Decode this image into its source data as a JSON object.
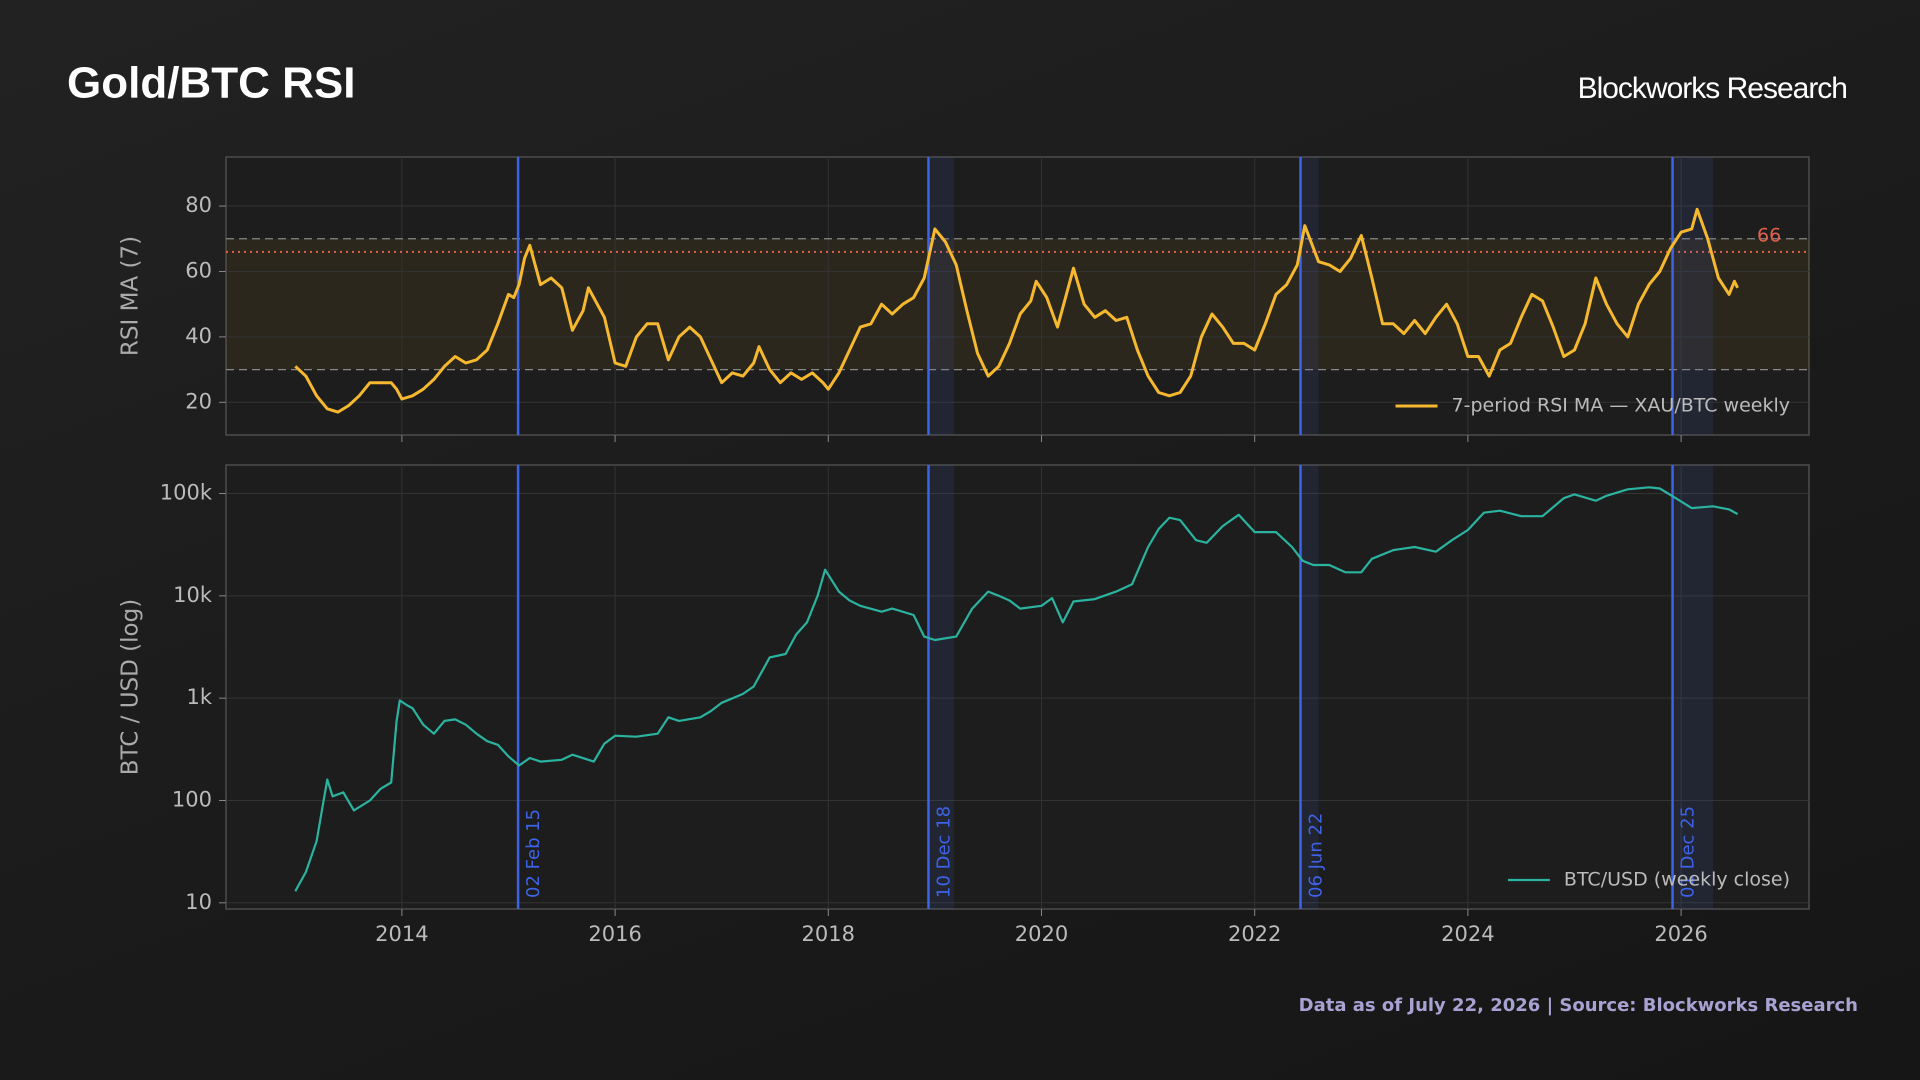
{
  "title": "Gold/BTC RSI",
  "brand": "Blockworks Research",
  "footer": "Data as of July 22, 2026 | Source: Blockworks Research",
  "events": [
    {
      "x": 2015.09,
      "label": "02 Feb 15"
    },
    {
      "x": 2018.94,
      "shade_end": 2019.18,
      "label": "10 Dec 18"
    },
    {
      "x": 2022.43,
      "shade_end": 2022.6,
      "label": "06 Jun 22"
    },
    {
      "x": 2025.92,
      "shade_end": 2026.3,
      "label": "01 Dec 25"
    }
  ],
  "chart_data": [
    {
      "type": "line",
      "y_label": "RSI MA (7)",
      "xlim": [
        2012.35,
        2027.2
      ],
      "xticks": [
        2014,
        2016,
        2018,
        2020,
        2022,
        2024,
        2026
      ],
      "ylim": [
        10,
        95
      ],
      "yticks": [
        20,
        40,
        60,
        80
      ],
      "grid": true,
      "legend": "lower right",
      "reference_lines": [
        70,
        30
      ],
      "threshold": {
        "value": 66,
        "color": "#e0604c"
      },
      "band_color": "#f5b82e",
      "x": [
        2013.0,
        2013.1,
        2013.2,
        2013.3,
        2013.4,
        2013.5,
        2013.6,
        2013.7,
        2013.8,
        2013.9,
        2013.95,
        2014.0,
        2014.1,
        2014.2,
        2014.3,
        2014.4,
        2014.5,
        2014.6,
        2014.7,
        2014.8,
        2014.9,
        2015.0,
        2015.05,
        2015.1,
        2015.15,
        2015.2,
        2015.3,
        2015.4,
        2015.5,
        2015.6,
        2015.7,
        2015.75,
        2015.9,
        2016.0,
        2016.1,
        2016.2,
        2016.3,
        2016.4,
        2016.5,
        2016.6,
        2016.7,
        2016.8,
        2016.9,
        2017.0,
        2017.1,
        2017.2,
        2017.3,
        2017.35,
        2017.45,
        2017.55,
        2017.65,
        2017.75,
        2017.85,
        2017.95,
        2018.0,
        2018.1,
        2018.2,
        2018.3,
        2018.4,
        2018.5,
        2018.6,
        2018.7,
        2018.8,
        2018.9,
        2019.0,
        2019.1,
        2019.2,
        2019.3,
        2019.4,
        2019.5,
        2019.6,
        2019.7,
        2019.8,
        2019.9,
        2019.95,
        2020.05,
        2020.15,
        2020.3,
        2020.4,
        2020.5,
        2020.6,
        2020.7,
        2020.8,
        2020.9,
        2021.0,
        2021.1,
        2021.2,
        2021.3,
        2021.4,
        2021.5,
        2021.6,
        2021.7,
        2021.8,
        2021.9,
        2022.0,
        2022.1,
        2022.2,
        2022.3,
        2022.4,
        2022.47,
        2022.6,
        2022.7,
        2022.8,
        2022.9,
        2023.0,
        2023.1,
        2023.2,
        2023.3,
        2023.4,
        2023.5,
        2023.6,
        2023.7,
        2023.8,
        2023.9,
        2024.0,
        2024.1,
        2024.2,
        2024.3,
        2024.4,
        2024.5,
        2024.6,
        2024.7,
        2024.8,
        2024.9,
        2025.0,
        2025.1,
        2025.2,
        2025.3,
        2025.4,
        2025.5,
        2025.6,
        2025.7,
        2025.8,
        2025.9,
        2026.0,
        2026.1,
        2026.15,
        2026.25,
        2026.35,
        2026.45,
        2026.5,
        2026.53
      ],
      "series": [
        {
          "name": "7-period RSI MA — XAU/BTC weekly",
          "color": "#f5b82e",
          "values": [
            31,
            28,
            22,
            18,
            17,
            19,
            22,
            26,
            26,
            26,
            24,
            21,
            22,
            24,
            27,
            31,
            34,
            32,
            33,
            36,
            44,
            53,
            52,
            56,
            64,
            68,
            56,
            58,
            55,
            42,
            48,
            55,
            46,
            32,
            31,
            40,
            44,
            44,
            33,
            40,
            43,
            40,
            33,
            26,
            29,
            28,
            32,
            37,
            30,
            26,
            29,
            27,
            29,
            26,
            24,
            29,
            36,
            43,
            44,
            50,
            47,
            50,
            52,
            58,
            73,
            69,
            62,
            48,
            35,
            28,
            31,
            38,
            47,
            51,
            57,
            52,
            43,
            61,
            50,
            46,
            48,
            45,
            46,
            36,
            28,
            23,
            22,
            23,
            28,
            40,
            47,
            43,
            38,
            38,
            36,
            44,
            53,
            56,
            62,
            74,
            63,
            62,
            60,
            64,
            71,
            58,
            44,
            44,
            41,
            45,
            41,
            46,
            50,
            44,
            34,
            34,
            28,
            36,
            38,
            46,
            53,
            51,
            43,
            34,
            36,
            44,
            58,
            50,
            44,
            40,
            50,
            56,
            60,
            67,
            72,
            73,
            79,
            70,
            58,
            53,
            57,
            55
          ]
        }
      ]
    },
    {
      "type": "line",
      "y_label": "BTC / USD (log)",
      "log": true,
      "xlim": [
        2012.35,
        2027.2
      ],
      "xticks": [
        2014,
        2016,
        2018,
        2020,
        2022,
        2024,
        2026
      ],
      "ylim": [
        8.7,
        190000
      ],
      "yticks": [
        10,
        100,
        {
          "value": 1000,
          "label": "1k"
        },
        {
          "value": 10000,
          "label": "10k"
        },
        {
          "value": 100000,
          "label": "100k"
        }
      ],
      "grid": true,
      "legend": "lower right",
      "x": [
        2013.0,
        2013.1,
        2013.2,
        2013.25,
        2013.3,
        2013.35,
        2013.45,
        2013.55,
        2013.7,
        2013.8,
        2013.9,
        2013.95,
        2013.98,
        2014.05,
        2014.1,
        2014.2,
        2014.3,
        2014.4,
        2014.5,
        2014.6,
        2014.7,
        2014.8,
        2014.9,
        2015.0,
        2015.1,
        2015.2,
        2015.3,
        2015.5,
        2015.6,
        2015.8,
        2015.9,
        2016.0,
        2016.2,
        2016.4,
        2016.5,
        2016.6,
        2016.8,
        2016.9,
        2017.0,
        2017.2,
        2017.3,
        2017.45,
        2017.6,
        2017.7,
        2017.8,
        2017.9,
        2017.97,
        2018.1,
        2018.2,
        2018.3,
        2018.5,
        2018.6,
        2018.8,
        2018.9,
        2019.0,
        2019.2,
        2019.35,
        2019.5,
        2019.6,
        2019.7,
        2019.8,
        2020.0,
        2020.1,
        2020.2,
        2020.3,
        2020.5,
        2020.7,
        2020.85,
        2021.0,
        2021.1,
        2021.2,
        2021.3,
        2021.45,
        2021.55,
        2021.7,
        2021.85,
        2022.0,
        2022.2,
        2022.35,
        2022.45,
        2022.55,
        2022.7,
        2022.85,
        2023.0,
        2023.1,
        2023.3,
        2023.5,
        2023.7,
        2023.85,
        2024.0,
        2024.15,
        2024.3,
        2024.5,
        2024.7,
        2024.9,
        2025.0,
        2025.2,
        2025.3,
        2025.5,
        2025.7,
        2025.8,
        2025.95,
        2026.1,
        2026.3,
        2026.45,
        2026.53
      ],
      "series": [
        {
          "name": "BTC/USD (weekly close)",
          "color": "#2bb3a0",
          "values": [
            13,
            20,
            40,
            80,
            160,
            110,
            120,
            80,
            100,
            130,
            150,
            600,
            950,
            850,
            800,
            550,
            450,
            600,
            620,
            550,
            450,
            380,
            350,
            270,
            220,
            260,
            240,
            250,
            280,
            240,
            360,
            430,
            420,
            450,
            650,
            600,
            650,
            750,
            900,
            1100,
            1300,
            2500,
            2700,
            4200,
            5500,
            10000,
            18000,
            11000,
            9000,
            8000,
            7000,
            7500,
            6500,
            4000,
            3700,
            4000,
            7500,
            11000,
            10000,
            9000,
            7500,
            8000,
            9500,
            5500,
            8800,
            9300,
            11000,
            13000,
            30000,
            45000,
            58000,
            55000,
            35000,
            33000,
            48000,
            62000,
            42000,
            42000,
            30000,
            22000,
            20000,
            20000,
            17000,
            17000,
            23000,
            28000,
            30000,
            27000,
            35000,
            44000,
            65000,
            68000,
            60000,
            60000,
            90000,
            98000,
            85000,
            95000,
            110000,
            115000,
            112000,
            90000,
            72000,
            75000,
            70000,
            63000
          ]
        }
      ]
    }
  ]
}
